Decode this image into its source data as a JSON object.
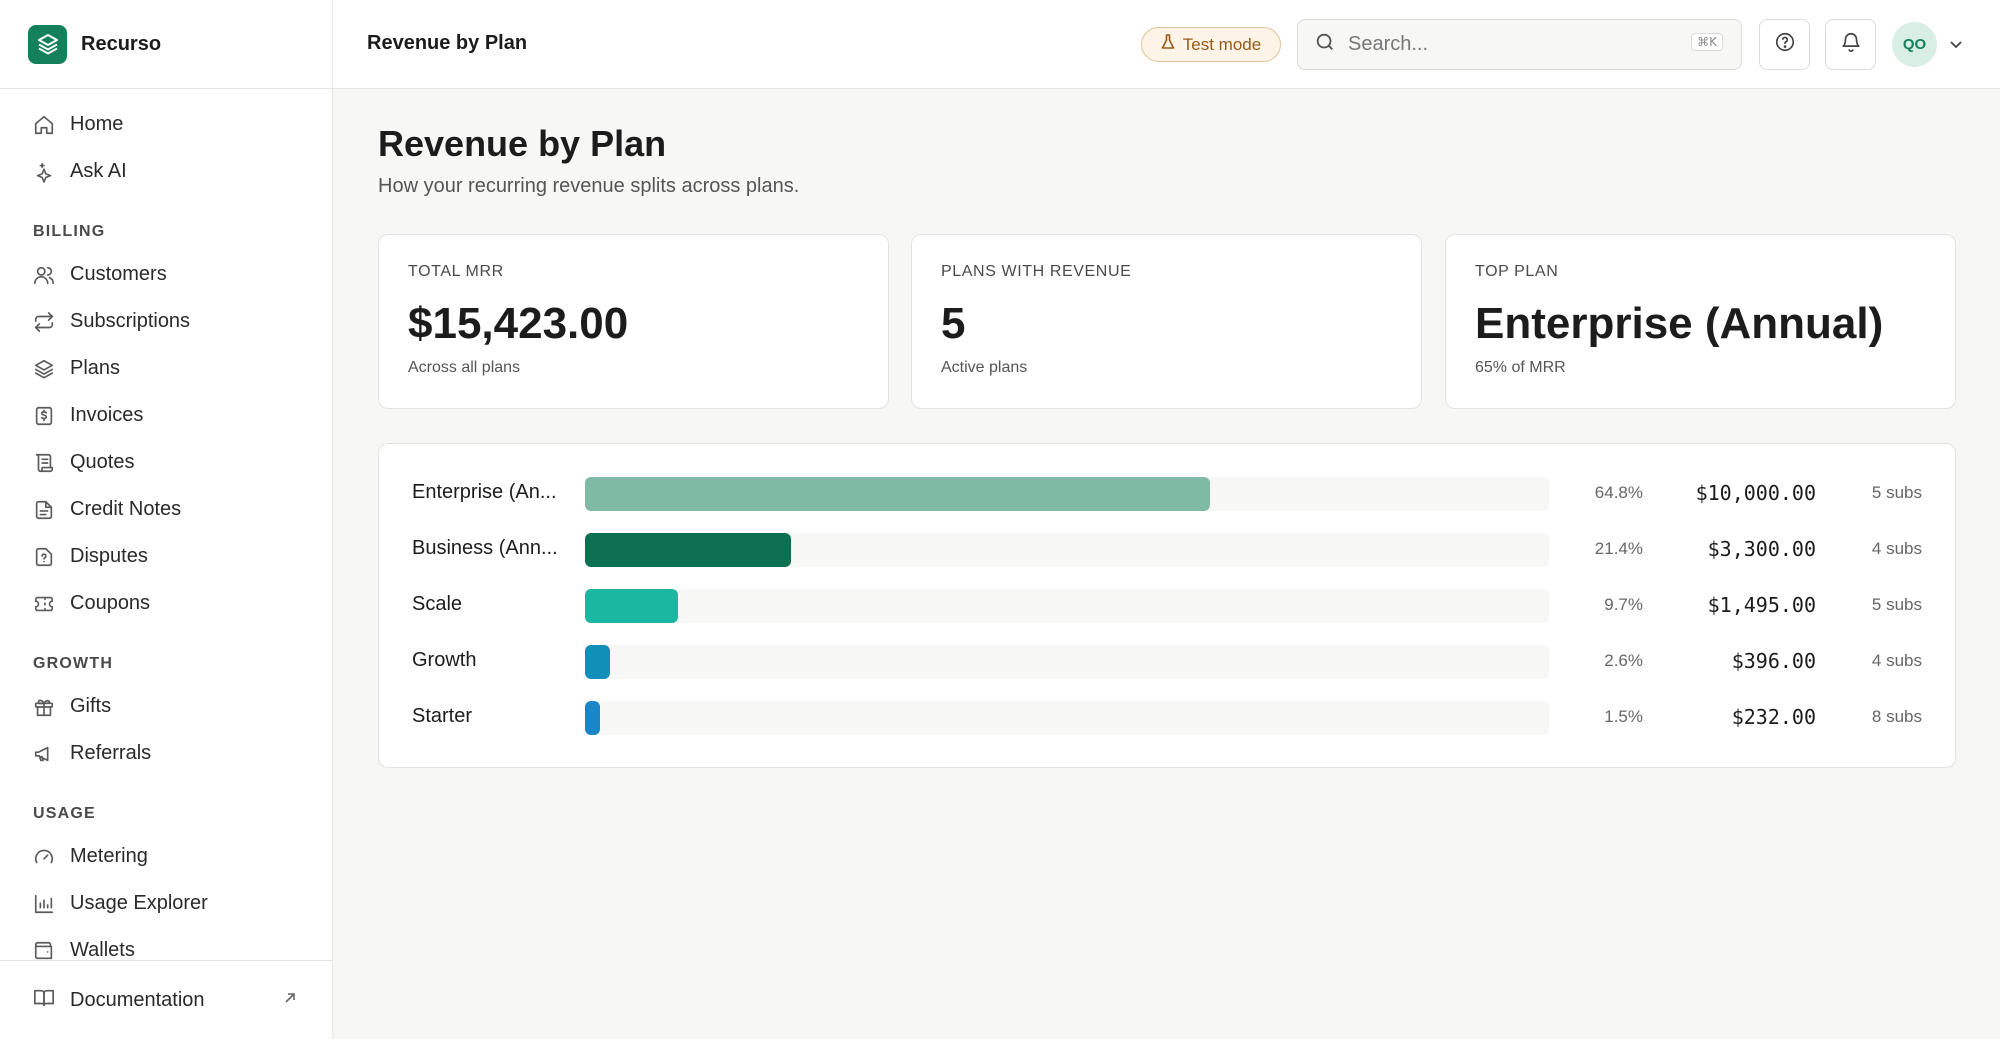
{
  "app": {
    "name": "Recurso"
  },
  "topbar": {
    "title": "Revenue by Plan",
    "test_mode": "Test mode",
    "search_placeholder": "Search...",
    "search_shortcut": "⌘K",
    "avatar_initials": "QO"
  },
  "sidebar": {
    "top_items": [
      {
        "label": "Home",
        "icon": "home-icon"
      },
      {
        "label": "Ask AI",
        "icon": "sparkle-icon"
      }
    ],
    "sections": [
      {
        "title": "BILLING",
        "items": [
          {
            "label": "Customers",
            "icon": "users-icon"
          },
          {
            "label": "Subscriptions",
            "icon": "repeat-icon"
          },
          {
            "label": "Plans",
            "icon": "layers-icon"
          },
          {
            "label": "Invoices",
            "icon": "receipt-icon"
          },
          {
            "label": "Quotes",
            "icon": "scroll-icon"
          },
          {
            "label": "Credit Notes",
            "icon": "file-icon"
          },
          {
            "label": "Disputes",
            "icon": "file-question-icon"
          },
          {
            "label": "Coupons",
            "icon": "ticket-icon"
          }
        ]
      },
      {
        "title": "GROWTH",
        "items": [
          {
            "label": "Gifts",
            "icon": "gift-icon"
          },
          {
            "label": "Referrals",
            "icon": "megaphone-icon"
          }
        ]
      },
      {
        "title": "USAGE",
        "items": [
          {
            "label": "Metering",
            "icon": "gauge-icon"
          },
          {
            "label": "Usage Explorer",
            "icon": "bar-chart-icon"
          },
          {
            "label": "Wallets",
            "icon": "wallet-icon"
          }
        ]
      }
    ],
    "footer": {
      "label": "Documentation",
      "icon": "book-icon"
    }
  },
  "page": {
    "title": "Revenue by Plan",
    "subtitle": "How your recurring revenue splits across plans."
  },
  "stats": [
    {
      "label": "TOTAL MRR",
      "value": "$15,423.00",
      "sub": "Across all plans"
    },
    {
      "label": "PLANS WITH REVENUE",
      "value": "5",
      "sub": "Active plans"
    },
    {
      "label": "TOP PLAN",
      "value": "Enterprise (Annual)",
      "sub": "65% of MRR"
    }
  ],
  "chart_data": {
    "type": "bar",
    "orientation": "horizontal",
    "categories": [
      "Enterprise (An...",
      "Business (Ann...",
      "Scale",
      "Growth",
      "Starter"
    ],
    "values": [
      10000,
      3300,
      1495,
      396,
      232
    ],
    "percent_labels": [
      "64.8%",
      "21.4%",
      "9.7%",
      "2.6%",
      "1.5%"
    ],
    "amount_labels": [
      "$10,000.00",
      "$3,300.00",
      "$1,495.00",
      "$396.00",
      "$232.00"
    ],
    "subs_labels": [
      "5 subs",
      "4 subs",
      "5 subs",
      "4 subs",
      "8 subs"
    ],
    "colors": [
      "#7fbaa5",
      "#0d7151",
      "#1cb7a0",
      "#118fb9",
      "#1886c7"
    ],
    "max_reference": 15423
  }
}
